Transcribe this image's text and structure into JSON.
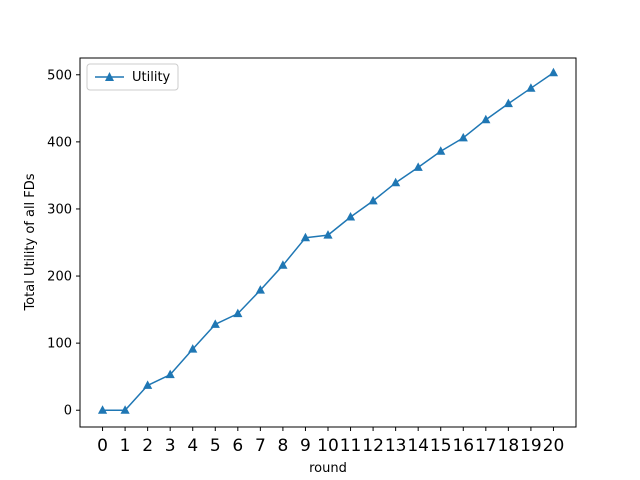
{
  "chart_data": {
    "type": "line",
    "title": "",
    "xlabel": "round",
    "ylabel": "Total Utility of all FDs",
    "x": [
      0,
      1,
      2,
      3,
      4,
      5,
      6,
      7,
      8,
      9,
      10,
      11,
      12,
      13,
      14,
      15,
      16,
      17,
      18,
      19,
      20
    ],
    "x_tick_labels": [
      "0",
      "1",
      "2",
      "3",
      "4",
      "5",
      "6",
      "7",
      "8",
      "9",
      "10",
      "11",
      "12",
      "13",
      "14",
      "15",
      "16",
      "17",
      "18",
      "19",
      "20"
    ],
    "y_ticks": [
      0,
      100,
      200,
      300,
      400,
      500
    ],
    "y_tick_labels": [
      "0",
      "100",
      "200",
      "300",
      "400",
      "500"
    ],
    "ylim": [
      -25,
      525
    ],
    "xlim": [
      -1,
      21
    ],
    "grid": false,
    "legend_position": "top-left",
    "series": [
      {
        "name": "Utility",
        "marker": "triangle-up",
        "color": "#1f77b4",
        "values": [
          0,
          0,
          37,
          53,
          91,
          128,
          144,
          179,
          216,
          257,
          261,
          288,
          312,
          339,
          362,
          386,
          406,
          433,
          457,
          480,
          503
        ]
      }
    ]
  }
}
